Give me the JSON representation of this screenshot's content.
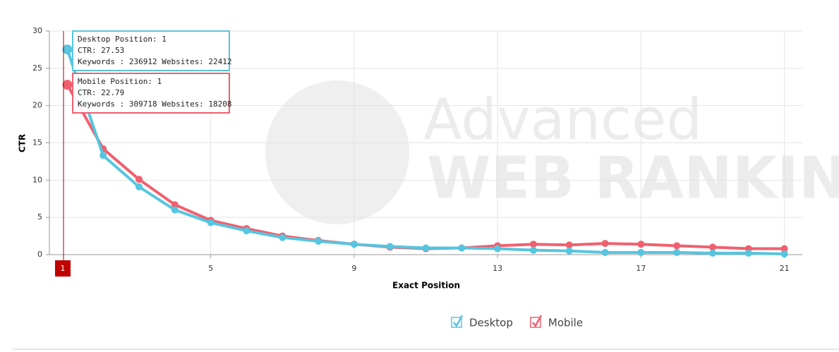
{
  "chart_data": {
    "type": "line",
    "x_label": "Exact Position",
    "y_label": "CTR",
    "x": [
      1,
      2,
      3,
      4,
      5,
      6,
      7,
      8,
      9,
      10,
      11,
      12,
      13,
      14,
      15,
      16,
      17,
      18,
      19,
      20,
      21
    ],
    "series": [
      {
        "name": "Desktop",
        "color": "#56c5df",
        "values": [
          27.53,
          13.3,
          9.1,
          6.0,
          4.3,
          3.2,
          2.3,
          1.8,
          1.4,
          1.1,
          0.9,
          0.9,
          0.8,
          0.6,
          0.5,
          0.3,
          0.3,
          0.3,
          0.2,
          0.2,
          0.1
        ]
      },
      {
        "name": "Mobile",
        "color": "#f0606f",
        "values": [
          22.79,
          14.2,
          10.1,
          6.7,
          4.6,
          3.5,
          2.5,
          1.9,
          1.4,
          1.0,
          0.8,
          0.9,
          1.2,
          1.4,
          1.3,
          1.5,
          1.4,
          1.2,
          1.0,
          0.8,
          0.8
        ]
      }
    ],
    "xlim": [
      0.5,
      21.5
    ],
    "ylim": [
      0,
      30
    ],
    "xticks": [
      5,
      9,
      13,
      17,
      21
    ],
    "yticks": [
      0,
      5,
      10,
      15,
      20,
      25,
      30
    ],
    "grid": true,
    "crosshair_label": "1",
    "tooltips": [
      {
        "lines": [
          "Desktop Position: 1",
          "CTR: 27.53",
          "Keywords : 236912 Websites: 22412"
        ]
      },
      {
        "lines": [
          "Mobile Position: 1",
          "CTR: 22.79",
          "Keywords : 309718 Websites: 18208"
        ]
      }
    ],
    "watermark": [
      "Advanced",
      "WEB RANKING"
    ]
  }
}
